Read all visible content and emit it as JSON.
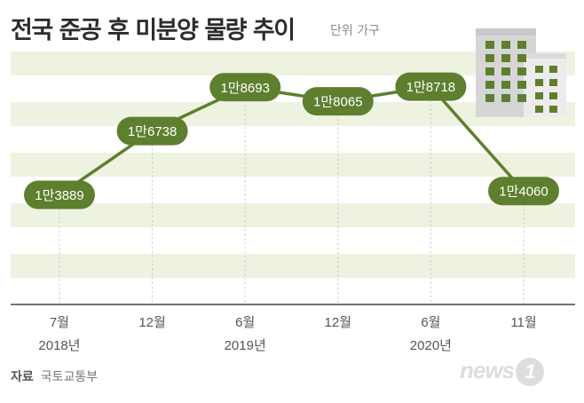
{
  "title": "전국 준공 후 미분양 물량 추이",
  "unit": "단위 가구",
  "source_key": "자료",
  "source_value": "국토교통부",
  "logo": {
    "text": "news",
    "mark": "1"
  },
  "colors": {
    "line": "#5e7f2e",
    "label_fill": "#5e7f2e",
    "band": "#edf3e0",
    "grid": "#dddddd",
    "building": "#5e7f2e"
  },
  "chart_data": {
    "type": "line",
    "title": "전국 준공 후 미분양 물량 추이",
    "unit": "단위 가구",
    "categories": [
      "7월",
      "12월",
      "6월",
      "12월",
      "6월",
      "11월"
    ],
    "year_labels": [
      "2018년",
      "2019년",
      "2020년"
    ],
    "year_label_positions": [
      0,
      2,
      4
    ],
    "values": [
      13889,
      16738,
      18693,
      18065,
      18718,
      14060
    ],
    "data_labels": [
      "1만3889",
      "1만6738",
      "1만8693",
      "1만8065",
      "1만8718",
      "1만4060"
    ],
    "ylim": [
      9000,
      21000
    ],
    "grid": true,
    "source": "국토교통부"
  }
}
